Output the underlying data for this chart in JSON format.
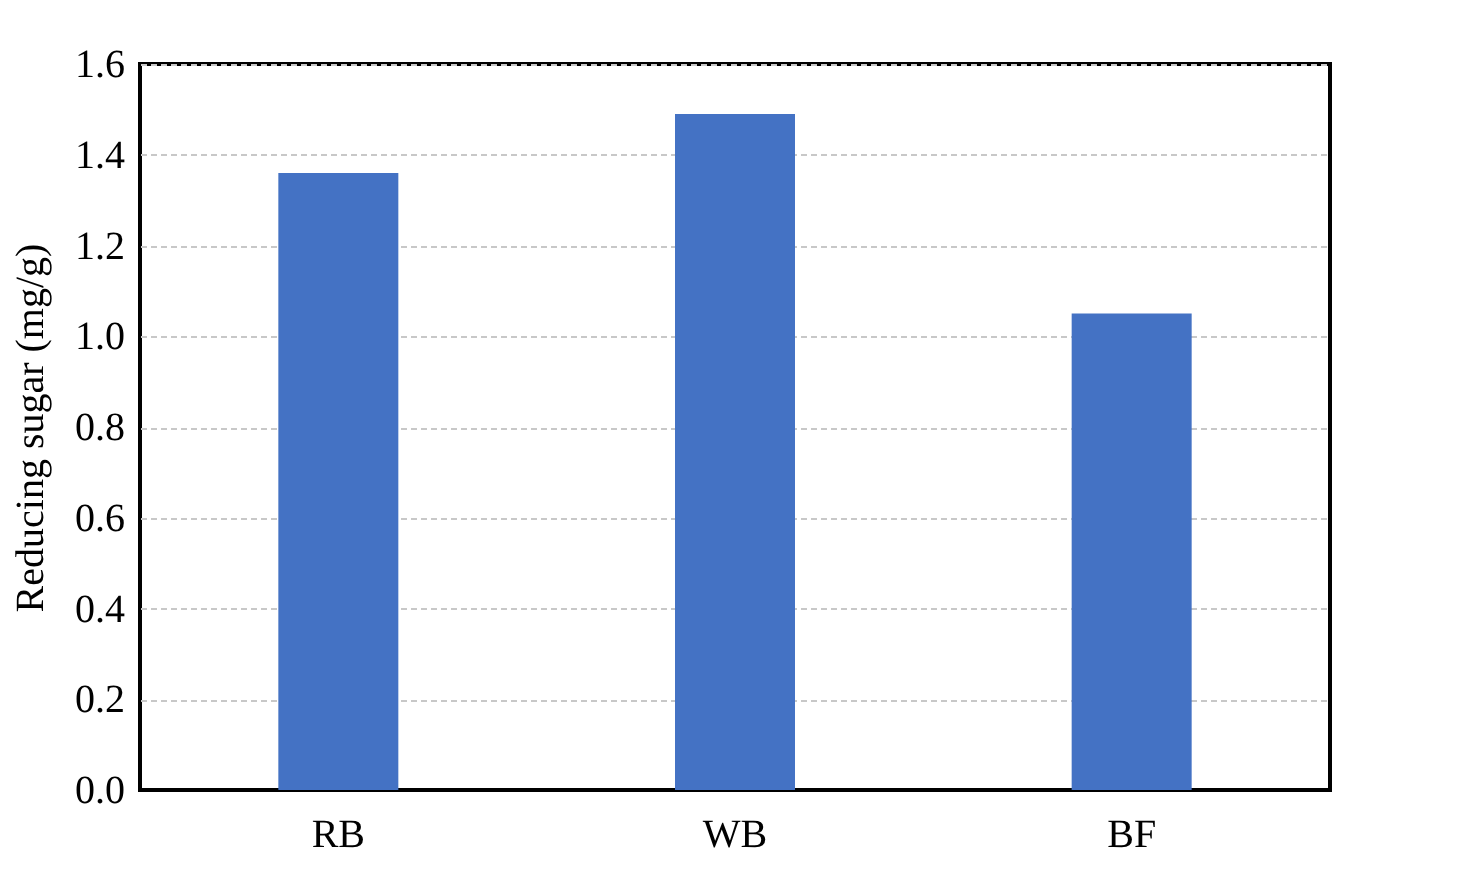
{
  "chart_data": {
    "type": "bar",
    "ylabel": "Reducing sugar (mg/g)",
    "categories": [
      "RB",
      "WB",
      "BF"
    ],
    "values": [
      1.36,
      1.49,
      1.05
    ],
    "color": "#4472c4",
    "ylim": [
      0,
      1.6
    ],
    "yticks": [
      {
        "value": 0,
        "label": "0.0"
      },
      0.2,
      0.4,
      0.6,
      0.8,
      {
        "value": 1,
        "label": "1.0"
      },
      1.2,
      1.4,
      1.6
    ],
    "grid": "y"
  }
}
